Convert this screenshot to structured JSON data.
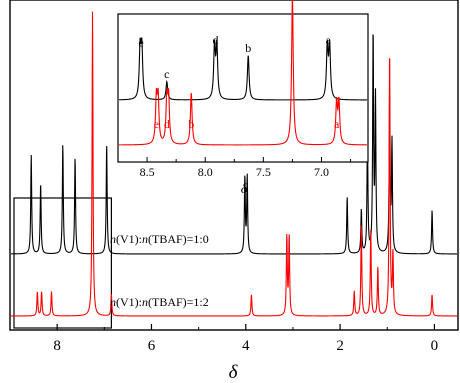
{
  "chart_data": [
    {
      "type": "line",
      "panel": "main",
      "xlabel": "δ",
      "xlim": [
        9,
        -0.5
      ],
      "xticks": [
        8,
        6,
        4,
        2,
        0
      ],
      "xtick_labels": [
        "8",
        "6",
        "4",
        "2",
        "0"
      ],
      "series": [
        {
          "label_parts": [
            {
              "text": "n",
              "italic": true
            },
            {
              "text": "(V1):",
              "italic": false
            },
            {
              "text": "n",
              "italic": true
            },
            {
              "text": "(TBAF)=1:0",
              "italic": false
            }
          ],
          "color": "#000000",
          "peaks": [
            {
              "shift": 8.55,
              "height": 0.45
            },
            {
              "shift": 8.35,
              "height": 0.32
            },
            {
              "shift": 7.88,
              "height": 0.5
            },
            {
              "shift": 7.62,
              "height": 0.44
            },
            {
              "shift": 6.95,
              "height": 0.5
            },
            {
              "shift": 4.02,
              "height": 0.35
            },
            {
              "shift": 3.97,
              "height": 0.35
            },
            {
              "shift": 1.85,
              "height": 0.26
            },
            {
              "shift": 1.55,
              "height": 0.2
            },
            {
              "shift": 1.42,
              "height": 0.55
            },
            {
              "shift": 1.3,
              "height": 1.0
            },
            {
              "shift": 1.25,
              "height": 0.7
            },
            {
              "shift": 0.95,
              "height": 0.72
            },
            {
              "shift": 0.9,
              "height": 0.5
            },
            {
              "shift": 0.05,
              "height": 0.2
            }
          ]
        },
        {
          "label_parts": [
            {
              "text": "n",
              "italic": true
            },
            {
              "text": "(V1):",
              "italic": false
            },
            {
              "text": "n",
              "italic": true
            },
            {
              "text": "(TBAF)=1:2",
              "italic": false
            }
          ],
          "color": "#ff0000",
          "peaks": [
            {
              "shift": 8.42,
              "height": 0.08
            },
            {
              "shift": 8.33,
              "height": 0.08
            },
            {
              "shift": 8.12,
              "height": 0.08
            },
            {
              "shift": 7.25,
              "height": 1.0
            },
            {
              "shift": 6.85,
              "height": 0.07
            },
            {
              "shift": 3.88,
              "height": 0.07
            },
            {
              "shift": 3.13,
              "height": 0.26
            },
            {
              "shift": 3.08,
              "height": 0.26
            },
            {
              "shift": 1.7,
              "height": 0.08
            },
            {
              "shift": 1.55,
              "height": 0.3
            },
            {
              "shift": 1.35,
              "height": 0.28
            },
            {
              "shift": 1.2,
              "height": 0.16
            },
            {
              "shift": 0.95,
              "height": 0.88
            },
            {
              "shift": 0.88,
              "height": 0.2
            },
            {
              "shift": 0.05,
              "height": 0.07
            }
          ]
        }
      ],
      "highlight_box": {
        "from": 9.0,
        "to": 6.85
      }
    },
    {
      "type": "line",
      "panel": "inset",
      "xlabel": "δ",
      "xlim": [
        8.75,
        6.6
      ],
      "xticks": [
        8.5,
        8.0,
        7.5,
        7.0
      ],
      "xtick_labels": [
        "8.5",
        "8.0",
        "7.5",
        "7.0"
      ],
      "series": [
        {
          "color": "#000000",
          "peaks": [
            {
              "shift": 8.56,
              "height": 0.95,
              "label": "e"
            },
            {
              "shift": 8.545,
              "height": 0.95
            },
            {
              "shift": 8.33,
              "height": 0.35,
              "label": "c"
            },
            {
              "shift": 7.92,
              "height": 1.0,
              "label": "d"
            },
            {
              "shift": 7.9,
              "height": 1.0
            },
            {
              "shift": 7.63,
              "height": 0.85,
              "label": "b"
            },
            {
              "shift": 6.95,
              "height": 1.0,
              "label": "a"
            },
            {
              "shift": 6.93,
              "height": 1.0
            }
          ]
        },
        {
          "color": "#ff0000",
          "peaks": [
            {
              "shift": 8.42,
              "height": 0.3,
              "label": "e"
            },
            {
              "shift": 8.405,
              "height": 0.3
            },
            {
              "shift": 8.33,
              "height": 0.3,
              "label": "d"
            },
            {
              "shift": 8.315,
              "height": 0.3
            },
            {
              "shift": 8.12,
              "height": 0.35,
              "label": "b"
            },
            {
              "shift": 7.25,
              "height": 1.0
            },
            {
              "shift": 6.87,
              "height": 0.28,
              "label": "a"
            },
            {
              "shift": 6.85,
              "height": 0.28
            }
          ]
        }
      ]
    }
  ]
}
